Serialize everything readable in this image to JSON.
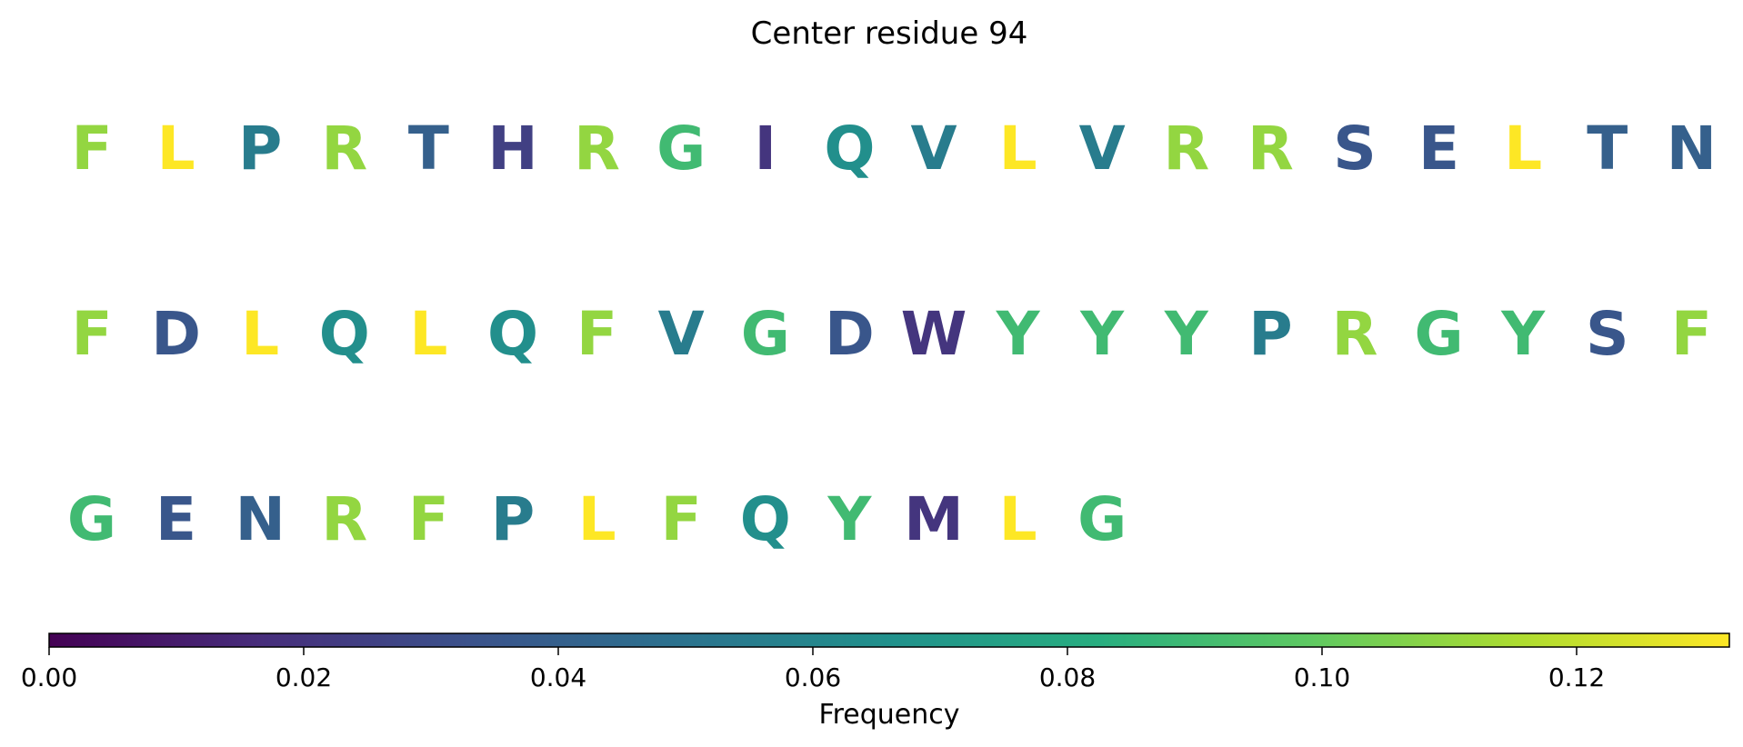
{
  "chart_data": {
    "type": "heatmap",
    "title": "Center residue 94",
    "colorbar": {
      "label": "Frequency",
      "range": [
        0,
        0.132
      ],
      "ticks": [
        0,
        0.02,
        0.04,
        0.06,
        0.08,
        0.1,
        0.12
      ],
      "tick_labels": [
        "0.00",
        "0.02",
        "0.04",
        "0.06",
        "0.08",
        "0.10",
        "0.12"
      ],
      "colormap": "viridis",
      "placement": "bottom"
    },
    "rows": [
      {
        "letters": [
          "F",
          "L",
          "P",
          "R",
          "T",
          "H",
          "R",
          "G",
          "I",
          "Q",
          "V",
          "L",
          "V",
          "R",
          "R",
          "S",
          "E",
          "L",
          "T",
          "N"
        ],
        "values": [
          0.11,
          0.132,
          0.055,
          0.11,
          0.04,
          0.025,
          0.11,
          0.09,
          0.02,
          0.065,
          0.055,
          0.132,
          0.055,
          0.11,
          0.11,
          0.035,
          0.035,
          0.132,
          0.04,
          0.04
        ]
      },
      {
        "letters": [
          "F",
          "D",
          "L",
          "Q",
          "L",
          "Q",
          "F",
          "V",
          "G",
          "D",
          "W",
          "Y",
          "Y",
          "Y",
          "P",
          "R",
          "G",
          "Y",
          "S",
          "F"
        ],
        "values": [
          0.11,
          0.035,
          0.132,
          0.065,
          0.132,
          0.065,
          0.11,
          0.055,
          0.09,
          0.035,
          0.02,
          0.09,
          0.09,
          0.09,
          0.055,
          0.11,
          0.09,
          0.09,
          0.035,
          0.11
        ]
      },
      {
        "letters": [
          "G",
          "E",
          "N",
          "R",
          "F",
          "P",
          "L",
          "F",
          "Q",
          "Y",
          "M",
          "L",
          "G"
        ],
        "values": [
          0.09,
          0.035,
          0.04,
          0.11,
          0.11,
          0.055,
          0.132,
          0.11,
          0.065,
          0.09,
          0.02,
          0.132,
          0.09
        ]
      }
    ]
  }
}
